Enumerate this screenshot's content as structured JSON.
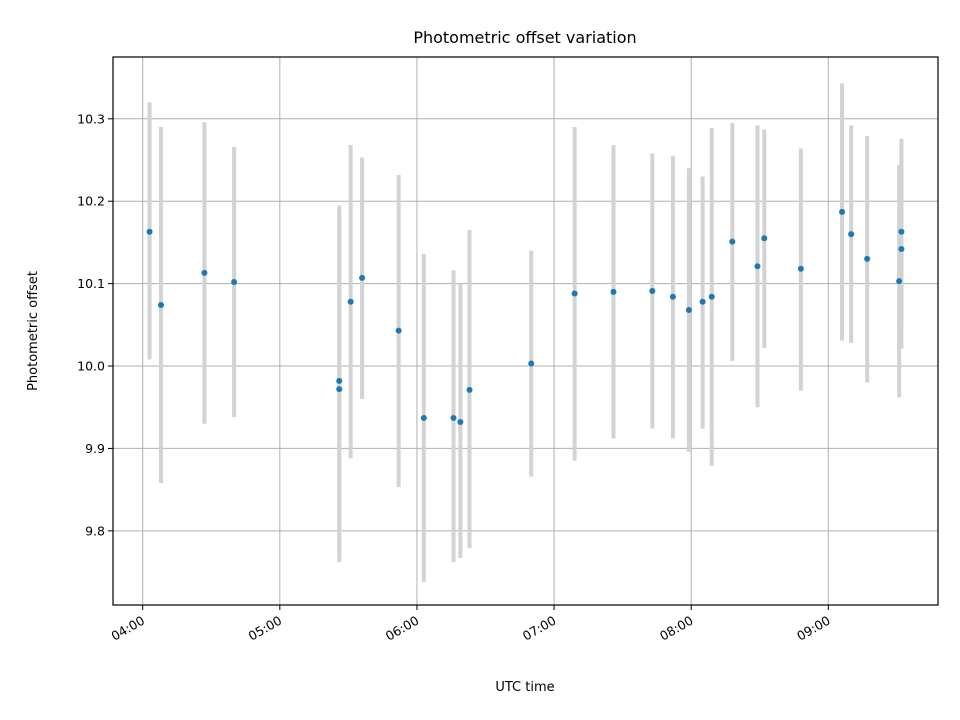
{
  "chart_data": {
    "type": "scatter",
    "title": "Photometric offset variation",
    "xlabel": "UTC time",
    "ylabel": "Photometric offset",
    "x_ticks": [
      "04:00",
      "05:00",
      "06:00",
      "07:00",
      "08:00",
      "09:00"
    ],
    "y_ticks": [
      "9.8",
      "9.9",
      "10.0",
      "10.1",
      "10.2",
      "10.3"
    ],
    "xlim": [
      "03:47",
      "09:48"
    ],
    "ylim": [
      9.71,
      10.375
    ],
    "grid": true,
    "colors": {
      "marker": "#1f77b4",
      "errorbar": "#d3d3d3",
      "grid": "#b0b0b0"
    },
    "points": [
      {
        "x": "04:03",
        "y": 10.163,
        "yerr_low": 10.008,
        "yerr_high": 10.32
      },
      {
        "x": "04:08",
        "y": 10.074,
        "yerr_low": 9.858,
        "yerr_high": 10.29
      },
      {
        "x": "04:27",
        "y": 10.113,
        "yerr_low": 9.93,
        "yerr_high": 10.296
      },
      {
        "x": "04:40",
        "y": 10.102,
        "yerr_low": 9.938,
        "yerr_high": 10.266
      },
      {
        "x": "05:26",
        "y": 9.982,
        "yerr_low": 9.77,
        "yerr_high": 10.195
      },
      {
        "x": "05:26",
        "y": 9.972,
        "yerr_low": 9.762,
        "yerr_high": 10.183
      },
      {
        "x": "05:31",
        "y": 10.078,
        "yerr_low": 9.888,
        "yerr_high": 10.268
      },
      {
        "x": "05:36",
        "y": 10.107,
        "yerr_low": 9.96,
        "yerr_high": 10.253
      },
      {
        "x": "05:52",
        "y": 10.043,
        "yerr_low": 9.853,
        "yerr_high": 10.232
      },
      {
        "x": "06:03",
        "y": 9.937,
        "yerr_low": 9.738,
        "yerr_high": 10.136
      },
      {
        "x": "06:16",
        "y": 9.937,
        "yerr_low": 9.762,
        "yerr_high": 10.116
      },
      {
        "x": "06:19",
        "y": 9.932,
        "yerr_low": 9.767,
        "yerr_high": 10.1
      },
      {
        "x": "06:23",
        "y": 9.971,
        "yerr_low": 9.779,
        "yerr_high": 10.165
      },
      {
        "x": "06:50",
        "y": 10.003,
        "yerr_low": 9.866,
        "yerr_high": 10.14
      },
      {
        "x": "07:09",
        "y": 10.088,
        "yerr_low": 9.885,
        "yerr_high": 10.29
      },
      {
        "x": "07:26",
        "y": 10.09,
        "yerr_low": 9.912,
        "yerr_high": 10.268
      },
      {
        "x": "07:43",
        "y": 10.091,
        "yerr_low": 9.924,
        "yerr_high": 10.258
      },
      {
        "x": "07:52",
        "y": 10.084,
        "yerr_low": 9.912,
        "yerr_high": 10.255
      },
      {
        "x": "07:59",
        "y": 10.068,
        "yerr_low": 9.896,
        "yerr_high": 10.24
      },
      {
        "x": "08:05",
        "y": 10.078,
        "yerr_low": 9.924,
        "yerr_high": 10.23
      },
      {
        "x": "08:09",
        "y": 10.084,
        "yerr_low": 9.879,
        "yerr_high": 10.289
      },
      {
        "x": "08:18",
        "y": 10.151,
        "yerr_low": 10.006,
        "yerr_high": 10.295
      },
      {
        "x": "08:29",
        "y": 10.121,
        "yerr_low": 9.95,
        "yerr_high": 10.292
      },
      {
        "x": "08:32",
        "y": 10.155,
        "yerr_low": 10.022,
        "yerr_high": 10.287
      },
      {
        "x": "08:48",
        "y": 10.118,
        "yerr_low": 9.97,
        "yerr_high": 10.264
      },
      {
        "x": "09:06",
        "y": 10.187,
        "yerr_low": 10.031,
        "yerr_high": 10.343
      },
      {
        "x": "09:10",
        "y": 10.16,
        "yerr_low": 10.028,
        "yerr_high": 10.292
      },
      {
        "x": "09:17",
        "y": 10.13,
        "yerr_low": 9.98,
        "yerr_high": 10.279
      },
      {
        "x": "09:31",
        "y": 10.103,
        "yerr_low": 9.962,
        "yerr_high": 10.244
      },
      {
        "x": "09:32",
        "y": 10.163,
        "yerr_low": 10.05,
        "yerr_high": 10.276
      },
      {
        "x": "09:32",
        "y": 10.142,
        "yerr_low": 10.021,
        "yerr_high": 10.263
      }
    ]
  }
}
